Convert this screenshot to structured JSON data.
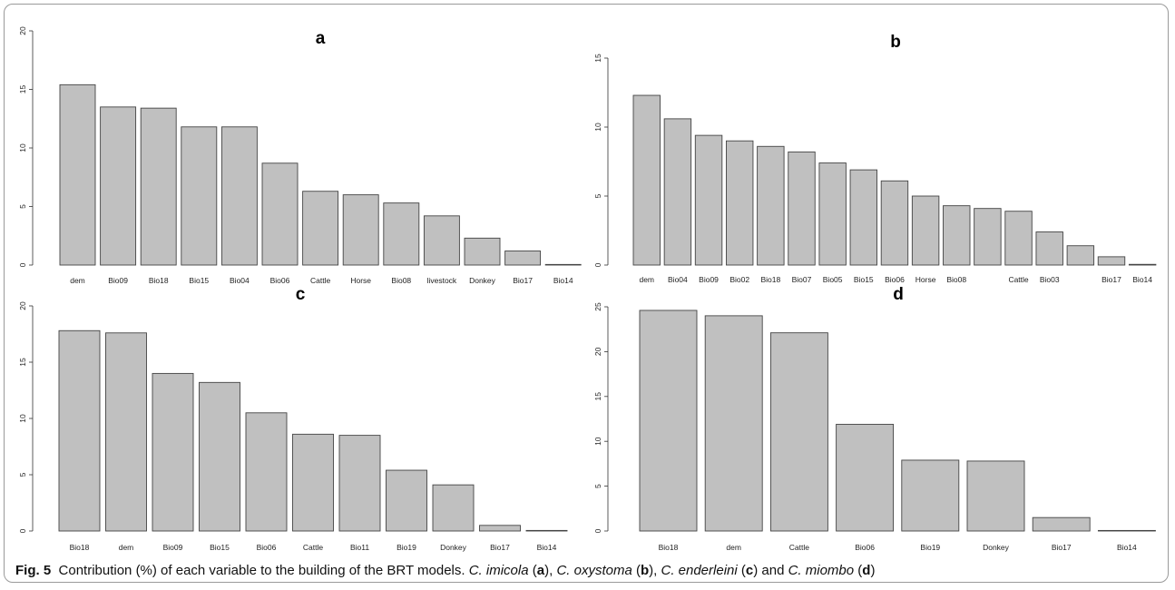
{
  "chart_data": [
    {
      "panel": "a",
      "type": "bar",
      "title": "a",
      "categories": [
        "dem",
        "Bio09",
        "Bio18",
        "Bio15",
        "Bio04",
        "Bio06",
        "Cattle",
        "Horse",
        "Bio08",
        "livestock",
        "Donkey",
        "Bio17",
        "Bio14"
      ],
      "values": [
        15.4,
        13.5,
        13.4,
        11.8,
        11.8,
        8.7,
        6.3,
        6.0,
        5.3,
        4.2,
        2.3,
        1.2,
        0.05
      ],
      "yticks": [
        0,
        5,
        10,
        15,
        20
      ],
      "ylim": [
        0,
        20
      ],
      "xlabel": "",
      "ylabel": "",
      "bar_color": "#c0c0c0",
      "grid": false
    },
    {
      "panel": "b",
      "type": "bar",
      "title": "b",
      "categories": [
        "dem",
        "Bio04",
        "Bio09",
        "Bio02",
        "Bio18",
        "Bio07",
        "Bio05",
        "Bio15",
        "Bio06",
        "Horse",
        "Bio08",
        "",
        "Cattle",
        "Bio03",
        "",
        "Bio17",
        "Bio14"
      ],
      "values": [
        12.3,
        10.6,
        9.4,
        9.0,
        8.6,
        8.2,
        7.4,
        6.9,
        6.1,
        5.0,
        4.3,
        4.1,
        3.9,
        2.4,
        1.4,
        0.6,
        0.05
      ],
      "yticks": [
        0,
        5,
        10,
        15
      ],
      "ylim": [
        0,
        15
      ],
      "xlabel": "",
      "ylabel": "",
      "bar_color": "#c0c0c0",
      "grid": false
    },
    {
      "panel": "c",
      "type": "bar",
      "title": "c",
      "categories": [
        "Bio18",
        "dem",
        "Bio09",
        "Bio15",
        "Bio06",
        "Cattle",
        "Bio11",
        "Bio19",
        "Donkey",
        "Bio17",
        "Bio14"
      ],
      "values": [
        17.8,
        17.6,
        14.0,
        13.2,
        10.5,
        8.6,
        8.5,
        5.4,
        4.1,
        0.5,
        0.05
      ],
      "yticks": [
        0,
        5,
        10,
        15,
        20
      ],
      "ylim": [
        0,
        20
      ],
      "xlabel": "",
      "ylabel": "",
      "bar_color": "#c0c0c0",
      "grid": false
    },
    {
      "panel": "d",
      "type": "bar",
      "title": "d",
      "categories": [
        "Bio18",
        "dem",
        "Cattle",
        "Bio06",
        "Bio19",
        "Donkey",
        "Bio17",
        "Bio14"
      ],
      "values": [
        24.6,
        24.0,
        22.1,
        11.9,
        7.9,
        7.8,
        1.5,
        0.05
      ],
      "yticks": [
        0,
        5,
        10,
        15,
        20,
        25
      ],
      "ylim": [
        0,
        25
      ],
      "xlabel": "",
      "ylabel": "",
      "bar_color": "#c0c0c0",
      "grid": false
    }
  ],
  "caption": {
    "label": "Fig. 5",
    "text": "Contribution (%) of each variable to the building of the BRT models.",
    "sp1": "C. imicola",
    "l1": "a",
    "sp2": "C. oxystoma",
    "l2": "b",
    "sp3": "C. enderleini",
    "l3": "c",
    "and_word": "and",
    "sp4": "C. miombo",
    "l4": "d"
  }
}
